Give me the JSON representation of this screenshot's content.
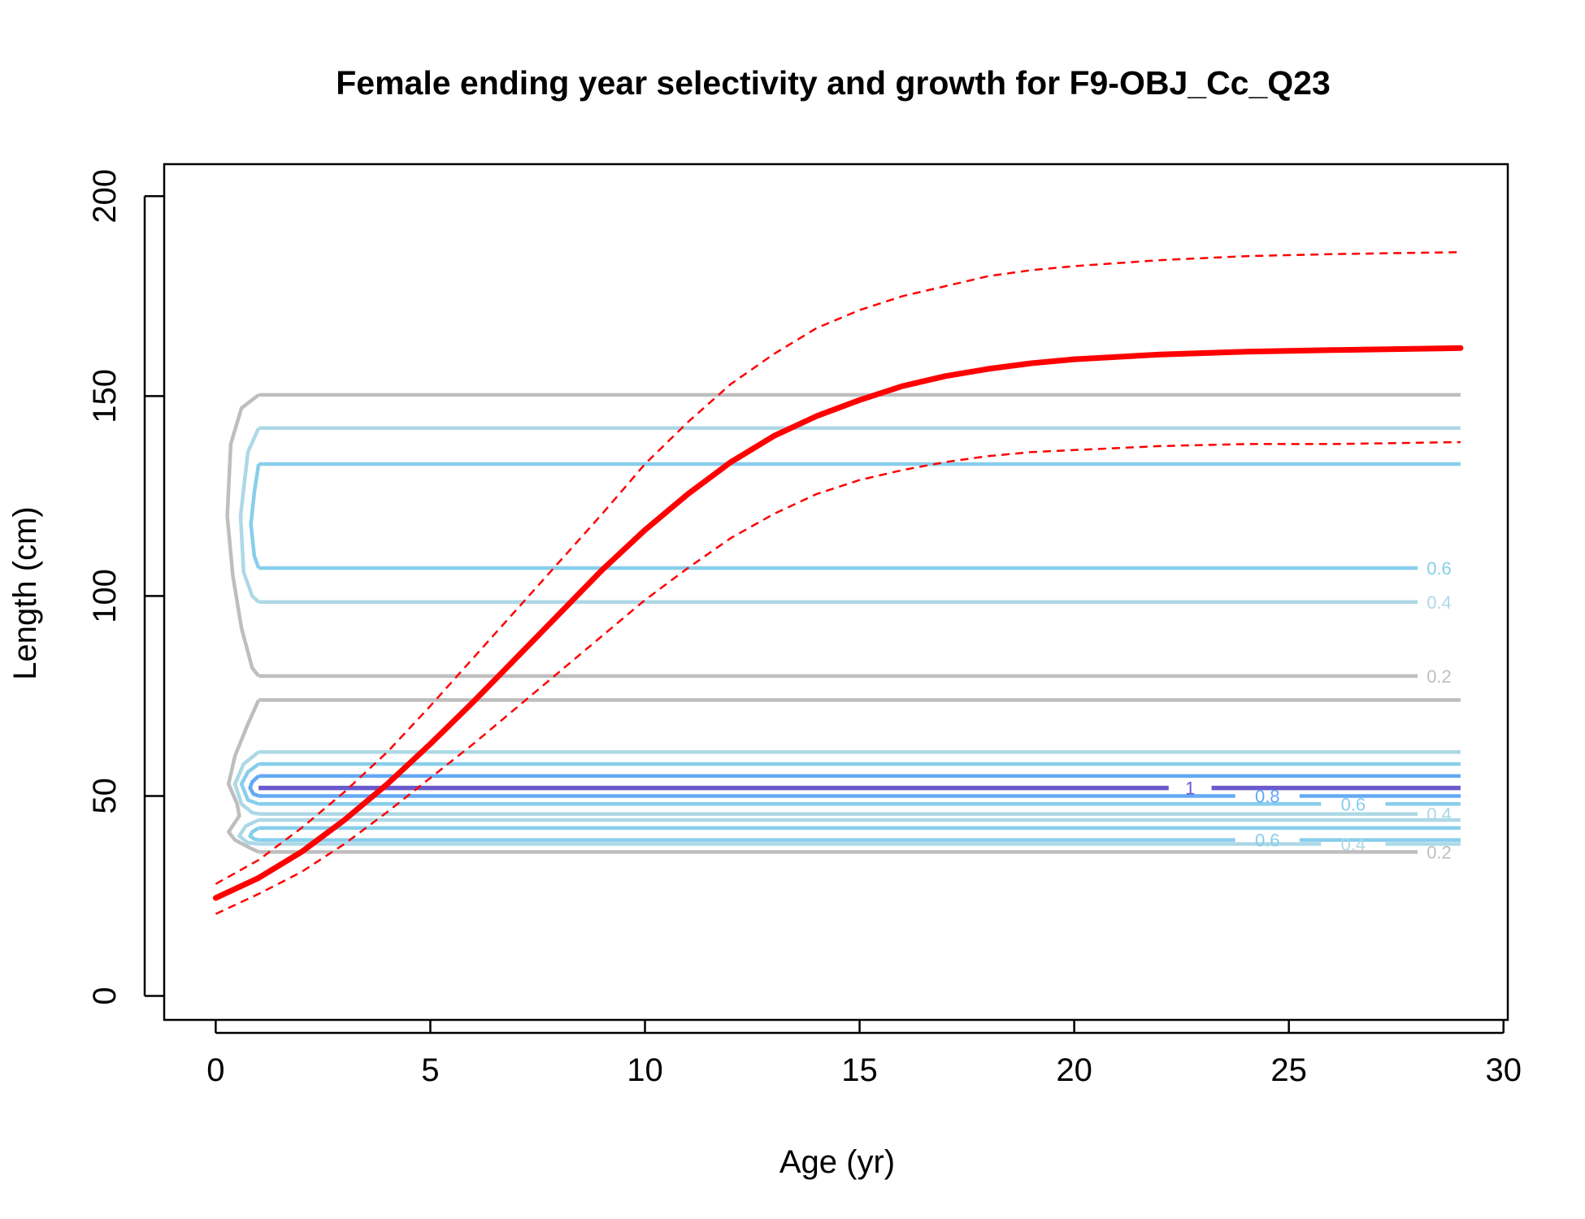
{
  "chart_data": {
    "type": "line",
    "title": "Female ending year selectivity and growth for F9-OBJ_Cc_Q23",
    "xlabel": "Age (yr)",
    "ylabel": "Length (cm)",
    "xlim": [
      -1.2,
      30.1
    ],
    "ylim": [
      -6,
      208
    ],
    "xticks": [
      0,
      5,
      10,
      15,
      20,
      25,
      30
    ],
    "yticks": [
      0,
      50,
      100,
      150,
      200
    ],
    "colors": {
      "growth": "#ff0000",
      "level_0.2": "#bebebe",
      "level_0.4": "#add8e6",
      "level_0.6": "#87ceeb",
      "level_0.8": "#63a9f5",
      "level_1": "#6a5acd"
    },
    "growth_curve": {
      "x": [
        0,
        1,
        2,
        3,
        4,
        5,
        6,
        7,
        8,
        9,
        10,
        11,
        12,
        13,
        14,
        15,
        16,
        17,
        18,
        19,
        20,
        22,
        24,
        26,
        29
      ],
      "mean": [
        24.5,
        29.5,
        36,
        44,
        53,
        63,
        73.5,
        84.5,
        95.5,
        106.5,
        116.5,
        125.5,
        133.5,
        140,
        145,
        149,
        152.5,
        155,
        156.8,
        158.2,
        159.2,
        160.4,
        161.1,
        161.5,
        162
      ],
      "upper": [
        28,
        34,
        42,
        51,
        61,
        72.5,
        84.5,
        96.5,
        108.5,
        120.5,
        133,
        143.5,
        153,
        160.5,
        167,
        171.5,
        175,
        177.5,
        180,
        181.5,
        182.5,
        184,
        185,
        185.5,
        186
      ],
      "lower": [
        20.5,
        25.5,
        31,
        38,
        46,
        54.5,
        63,
        72,
        81,
        90,
        99,
        107,
        114.5,
        120.5,
        125.5,
        129,
        131.5,
        133.5,
        135,
        136,
        136.5,
        137.5,
        138,
        138,
        138.5
      ]
    },
    "selectivity_contours": [
      {
        "level": "0.2",
        "length": 150.3,
        "x_start": 1.0,
        "x_end": 29.0
      },
      {
        "level": "0.4",
        "length": 142.0,
        "x_start": 1.0,
        "x_end": 29.0
      },
      {
        "level": "0.6",
        "length": 133.0,
        "x_start": 1.0,
        "x_end": 29.0
      },
      {
        "level": "0.6",
        "length": 107.0,
        "x_start": 1.0,
        "x_end": 29.0,
        "label": "0.6"
      },
      {
        "level": "0.4",
        "length": 98.5,
        "x_start": 1.0,
        "x_end": 29.0,
        "label": "0.4"
      },
      {
        "level": "0.2",
        "length": 80.0,
        "x_start": 1.0,
        "x_end": 29.0,
        "label": "0.2"
      },
      {
        "level": "0.2",
        "length": 74.0,
        "x_start": 1.0,
        "x_end": 29.0
      },
      {
        "level": "0.4",
        "length": 61.0,
        "x_start": 1.0,
        "x_end": 29.0
      },
      {
        "level": "0.6",
        "length": 58.0,
        "x_start": 1.0,
        "x_end": 29.0
      },
      {
        "level": "0.8",
        "length": 55.0,
        "x_start": 1.0,
        "x_end": 29.0
      },
      {
        "level": "1",
        "length": 52.0,
        "x_start": 1.0,
        "x_end": 29.0,
        "label": "1"
      },
      {
        "level": "0.8",
        "length": 50.0,
        "x_start": 1.0,
        "x_end": 29.0,
        "label": "0.8"
      },
      {
        "level": "0.6",
        "length": 48.0,
        "x_start": 1.0,
        "x_end": 29.0,
        "label": "0.6"
      },
      {
        "level": "0.4",
        "length": 45.5,
        "x_start": 1.0,
        "x_end": 29.0,
        "label": "0.4"
      },
      {
        "level": "0.4",
        "length": 44.0,
        "x_start": 1.0,
        "x_end": 29.0
      },
      {
        "level": "0.6",
        "length": 42.0,
        "x_start": 1.0,
        "x_end": 29.0
      },
      {
        "level": "0.6",
        "length": 39.0,
        "x_start": 1.0,
        "x_end": 29.0,
        "label": "0.6"
      },
      {
        "level": "0.4",
        "length": 38.0,
        "x_start": 1.0,
        "x_end": 29.0,
        "label": "0.4"
      },
      {
        "level": "0.2",
        "length": 36.0,
        "x_start": 1.0,
        "x_end": 29.0,
        "label": "0.2"
      }
    ],
    "contour_label_positions": [
      {
        "label": "0.6",
        "x": 28.5,
        "y": 107
      },
      {
        "label": "0.4",
        "x": 28.5,
        "y": 98.5
      },
      {
        "label": "0.2",
        "x": 28.5,
        "y": 80
      },
      {
        "label": "1",
        "x": 22.7,
        "y": 52
      },
      {
        "label": "0.8",
        "x": 24.5,
        "y": 50
      },
      {
        "label": "0.6",
        "x": 26.5,
        "y": 48
      },
      {
        "label": "0.4",
        "x": 28.5,
        "y": 45.5
      },
      {
        "label": "0.6",
        "x": 24.5,
        "y": 39
      },
      {
        "label": "0.4",
        "x": 26.5,
        "y": 38
      },
      {
        "label": "0.2",
        "x": 28.5,
        "y": 36
      }
    ]
  }
}
